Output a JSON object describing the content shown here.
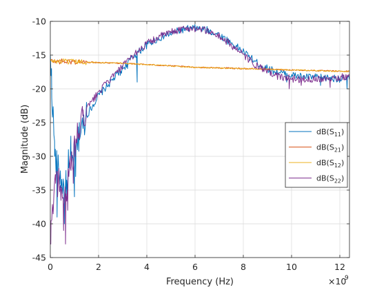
{
  "colors": {
    "background": "#ffffff",
    "axes": "#262626",
    "grid": "#d9d9d9",
    "legend_border": "#262626"
  },
  "chart_data": {
    "type": "line",
    "title": "",
    "xlabel": "Frequency (Hz)",
    "ylabel": "Magnitude (dB)",
    "x_exponent_label": {
      "base": "×10",
      "exponent": "9"
    },
    "xlim": [
      0,
      12.4
    ],
    "ylim": [
      -45,
      -10
    ],
    "x_ticks": [
      0,
      2,
      4,
      6,
      8,
      10,
      12
    ],
    "x_tick_labels": [
      "0",
      "2",
      "4",
      "6",
      "8",
      "10",
      "12"
    ],
    "y_ticks": [
      -45,
      -40,
      -35,
      -30,
      -25,
      -20,
      -15,
      -10
    ],
    "y_tick_labels": [
      "-45",
      "-40",
      "-35",
      "-30",
      "-25",
      "-20",
      "-15",
      "-10"
    ],
    "x_unit_scale": 1000000000.0,
    "grid": true,
    "legend_position": "right",
    "series": [
      {
        "name": "dB(S11)",
        "legend_main": "dB(S",
        "legend_sub": "11",
        "legend_close": ")",
        "color": "#0072BD",
        "noise": 0.55,
        "x": [
          0,
          0.2,
          0.4,
          0.6,
          0.8,
          1.0,
          1.2,
          1.5,
          2.0,
          2.5,
          3.0,
          3.5,
          4.0,
          4.5,
          5.0,
          5.5,
          6.0,
          6.5,
          7.0,
          7.5,
          8.0,
          8.5,
          9.0,
          9.5,
          10.0,
          10.5,
          11.0,
          11.5,
          12.0,
          12.4
        ],
        "y": [
          -16,
          -30,
          -33,
          -35,
          -32,
          -30,
          -27,
          -24,
          -21,
          -19,
          -17,
          -15,
          -13.5,
          -12.5,
          -11.8,
          -11.2,
          -11,
          -11.3,
          -12,
          -13.2,
          -14.5,
          -16,
          -17,
          -17.6,
          -18,
          -18.2,
          -18.3,
          -18.4,
          -18.5,
          -18.5
        ],
        "dips": [
          [
            0.05,
            -17
          ],
          [
            0.18,
            -30
          ],
          [
            0.28,
            -39
          ],
          [
            0.4,
            -33
          ],
          [
            0.52,
            -35
          ],
          [
            0.58,
            -40
          ],
          [
            0.66,
            -36
          ],
          [
            0.75,
            -29
          ],
          [
            0.85,
            -27
          ],
          [
            1.0,
            -36
          ],
          [
            1.05,
            -33
          ],
          [
            1.2,
            -25
          ],
          [
            1.5,
            -22
          ],
          [
            2.9,
            -18
          ],
          [
            3.2,
            -17
          ],
          [
            3.6,
            -19
          ],
          [
            9.8,
            -19
          ],
          [
            11.2,
            -19.5
          ],
          [
            12.3,
            -20
          ]
        ]
      },
      {
        "name": "dB(S21)",
        "legend_main": "dB(S",
        "legend_sub": "21",
        "legend_close": ")",
        "color": "#D95319",
        "noise": 0.1,
        "x": [
          0,
          1,
          2,
          3,
          4,
          5,
          6,
          7,
          8,
          9,
          10,
          11,
          12,
          12.4
        ],
        "y": [
          -15.9,
          -16,
          -16.1,
          -16.2,
          -16.4,
          -16.6,
          -16.8,
          -16.9,
          -17,
          -17.1,
          -17.2,
          -17.3,
          -17.4,
          -17.4
        ],
        "dips": []
      },
      {
        "name": "dB(S12)",
        "legend_main": "dB(S",
        "legend_sub": "12",
        "legend_close": ")",
        "color": "#EDB120",
        "noise": 0.1,
        "x": [
          0,
          1,
          2,
          3,
          4,
          5,
          6,
          7,
          8,
          9,
          10,
          11,
          12,
          12.4
        ],
        "y": [
          -15.9,
          -16,
          -16.1,
          -16.2,
          -16.4,
          -16.6,
          -16.8,
          -16.9,
          -17,
          -17.1,
          -17.2,
          -17.3,
          -17.4,
          -17.4
        ],
        "dips": []
      },
      {
        "name": "dB(S22)",
        "legend_main": "dB(S",
        "legend_sub": "22",
        "legend_close": ")",
        "color": "#7E2F8E",
        "noise": 0.55,
        "x": [
          0,
          0.2,
          0.4,
          0.6,
          0.8,
          1.0,
          1.2,
          1.5,
          2.0,
          2.5,
          3.0,
          3.5,
          4.0,
          4.5,
          5.0,
          5.5,
          6.0,
          6.5,
          7.0,
          7.5,
          8.0,
          8.5,
          9.0,
          9.5,
          10.0,
          10.5,
          11.0,
          11.5,
          12.0,
          12.4
        ],
        "y": [
          -43,
          -32,
          -34,
          -36,
          -33,
          -29,
          -26,
          -23,
          -20.5,
          -18.5,
          -16.7,
          -14.8,
          -13.3,
          -12.3,
          -11.6,
          -11.1,
          -11,
          -11.4,
          -12.2,
          -13.5,
          -15,
          -16.5,
          -17.5,
          -18.2,
          -18.5,
          -18.6,
          -18.5,
          -18.4,
          -18.3,
          -18.2
        ],
        "dips": [
          [
            0.02,
            -43
          ],
          [
            0.22,
            -34
          ],
          [
            0.3,
            -36
          ],
          [
            0.45,
            -35
          ],
          [
            0.55,
            -41
          ],
          [
            0.63,
            -43
          ],
          [
            0.72,
            -38
          ],
          [
            0.82,
            -30
          ],
          [
            0.95,
            -34
          ],
          [
            1.1,
            -28
          ],
          [
            1.35,
            -24
          ],
          [
            9.9,
            -20
          ],
          [
            10.4,
            -19.5
          ],
          [
            11.6,
            -19.8
          ]
        ]
      }
    ]
  }
}
